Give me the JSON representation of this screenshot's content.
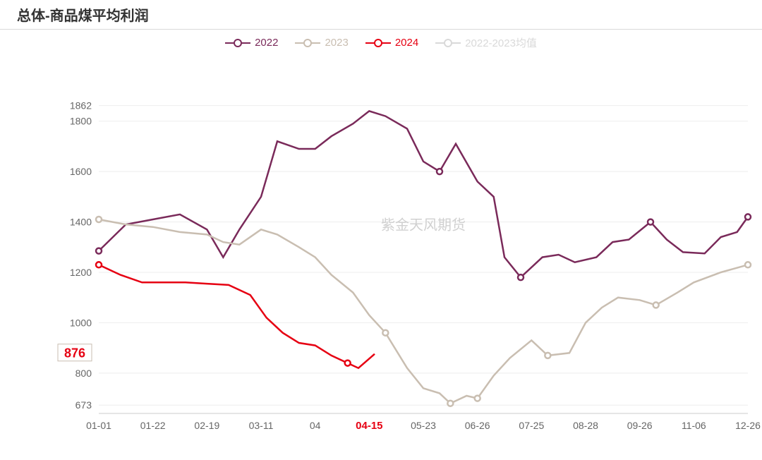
{
  "title": "总体-商品煤平均利润",
  "watermark": "紫金天风期货",
  "legend": [
    {
      "name": "2022",
      "color": "#7a2a5a"
    },
    {
      "name": "2023",
      "color": "#c9beb1"
    },
    {
      "name": "2024",
      "color": "#e60012"
    },
    {
      "name": "2022-2023均值",
      "color": "#d9d9d9"
    }
  ],
  "chart": {
    "type": "line",
    "background_color": "#ffffff",
    "grid_color": "#eeeeee",
    "x": {
      "ticks": [
        "01-01",
        "01-22",
        "02-19",
        "03-11",
        "04",
        "04-15",
        "05-23",
        "06-26",
        "07-25",
        "08-28",
        "09-26",
        "11-06",
        "12-26"
      ],
      "highlight_idx": 5,
      "highlight_color": "#e60012",
      "label_fontsize": 14
    },
    "y": {
      "ticks": [
        673,
        800,
        1000,
        1200,
        1400,
        1600,
        1800,
        1862
      ],
      "min": 640,
      "max": 1900,
      "label_fontsize": 14
    },
    "current_point": {
      "y_label": "876",
      "y_value": 876,
      "color": "#e60012",
      "box_border": "#c9beb1"
    },
    "series": [
      {
        "name": "2022",
        "color": "#7a2a5a",
        "stroke_width": 2.5,
        "marker": "circle",
        "points": [
          [
            0,
            1285
          ],
          [
            0.5,
            1390
          ],
          [
            1,
            1410
          ],
          [
            1.5,
            1430
          ],
          [
            2,
            1370
          ],
          [
            2.3,
            1260
          ],
          [
            2.6,
            1370
          ],
          [
            3,
            1500
          ],
          [
            3.3,
            1720
          ],
          [
            3.7,
            1690
          ],
          [
            4,
            1690
          ],
          [
            4.3,
            1740
          ],
          [
            4.7,
            1790
          ],
          [
            5,
            1840
          ],
          [
            5.3,
            1820
          ],
          [
            5.7,
            1770
          ],
          [
            6,
            1640
          ],
          [
            6.3,
            1600
          ],
          [
            6.6,
            1710
          ],
          [
            7,
            1560
          ],
          [
            7.3,
            1500
          ],
          [
            7.5,
            1260
          ],
          [
            7.8,
            1180
          ],
          [
            8.2,
            1260
          ],
          [
            8.5,
            1270
          ],
          [
            8.8,
            1240
          ],
          [
            9.2,
            1260
          ],
          [
            9.5,
            1320
          ],
          [
            9.8,
            1330
          ],
          [
            10.2,
            1400
          ],
          [
            10.5,
            1330
          ],
          [
            10.8,
            1280
          ],
          [
            11.2,
            1275
          ],
          [
            11.5,
            1340
          ],
          [
            11.8,
            1360
          ],
          [
            12,
            1420
          ]
        ],
        "marker_points": [
          [
            0,
            1285
          ],
          [
            6.3,
            1600
          ],
          [
            7.8,
            1180
          ],
          [
            10.2,
            1400
          ],
          [
            12,
            1420
          ]
        ]
      },
      {
        "name": "2023",
        "color": "#c9beb1",
        "stroke_width": 2.5,
        "marker": "circle",
        "points": [
          [
            0,
            1410
          ],
          [
            0.5,
            1390
          ],
          [
            1,
            1380
          ],
          [
            1.5,
            1360
          ],
          [
            2,
            1350
          ],
          [
            2.3,
            1320
          ],
          [
            2.6,
            1310
          ],
          [
            3,
            1370
          ],
          [
            3.3,
            1350
          ],
          [
            3.7,
            1300
          ],
          [
            4,
            1260
          ],
          [
            4.3,
            1190
          ],
          [
            4.7,
            1120
          ],
          [
            5,
            1030
          ],
          [
            5.3,
            960
          ],
          [
            5.7,
            820
          ],
          [
            6,
            740
          ],
          [
            6.3,
            720
          ],
          [
            6.5,
            680
          ],
          [
            6.8,
            710
          ],
          [
            7,
            700
          ],
          [
            7.3,
            790
          ],
          [
            7.6,
            860
          ],
          [
            8,
            930
          ],
          [
            8.3,
            870
          ],
          [
            8.7,
            880
          ],
          [
            9,
            1000
          ],
          [
            9.3,
            1060
          ],
          [
            9.6,
            1100
          ],
          [
            10,
            1090
          ],
          [
            10.3,
            1070
          ],
          [
            10.7,
            1120
          ],
          [
            11,
            1160
          ],
          [
            11.5,
            1200
          ],
          [
            12,
            1230
          ]
        ],
        "marker_points": [
          [
            0,
            1410
          ],
          [
            5.3,
            960
          ],
          [
            6.5,
            680
          ],
          [
            7,
            700
          ],
          [
            8.3,
            870
          ],
          [
            10.3,
            1070
          ],
          [
            12,
            1230
          ]
        ]
      },
      {
        "name": "2024",
        "color": "#e60012",
        "stroke_width": 3,
        "marker": "circle",
        "points": [
          [
            0,
            1230
          ],
          [
            0.4,
            1190
          ],
          [
            0.8,
            1160
          ],
          [
            1.2,
            1160
          ],
          [
            1.6,
            1160
          ],
          [
            2,
            1155
          ],
          [
            2.4,
            1150
          ],
          [
            2.8,
            1110
          ],
          [
            3.1,
            1020
          ],
          [
            3.4,
            960
          ],
          [
            3.7,
            920
          ],
          [
            4.0,
            910
          ],
          [
            4.3,
            870
          ],
          [
            4.6,
            840
          ],
          [
            4.8,
            820
          ],
          [
            5.1,
            876
          ]
        ],
        "marker_points": [
          [
            0,
            1230
          ],
          [
            4.6,
            840
          ]
        ]
      }
    ]
  }
}
